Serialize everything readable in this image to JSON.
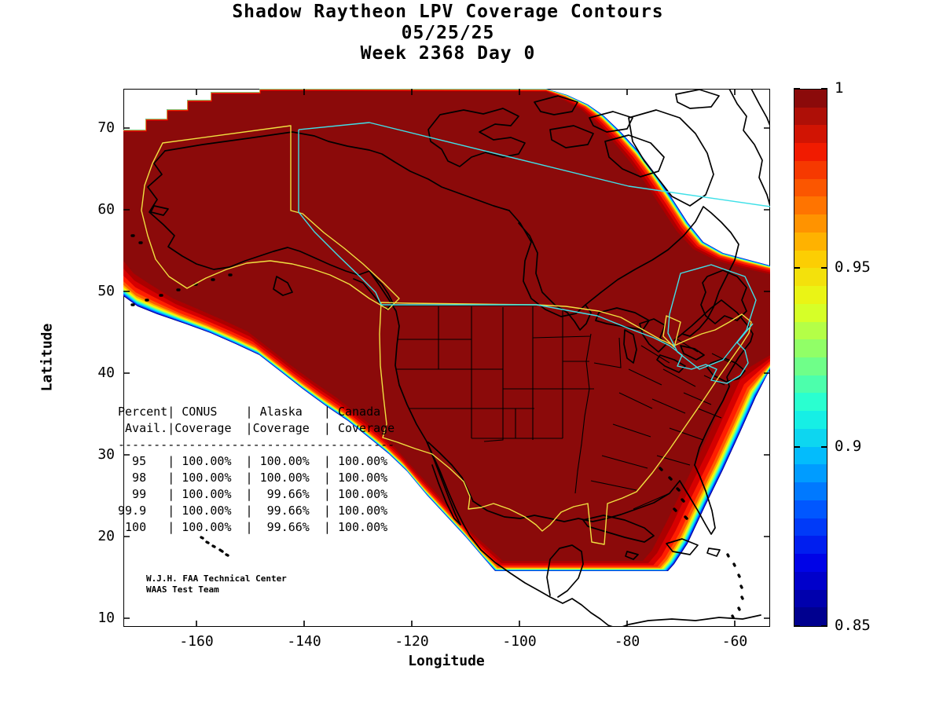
{
  "title": {
    "line1": "Shadow Raytheon LPV Coverage Contours",
    "line2": "05/25/25",
    "line3": "Week 2368 Day 0"
  },
  "axes": {
    "x_label": "Longitude",
    "y_label": "Latitude",
    "x_ticks": [
      "-160",
      "-140",
      "-120",
      "-100",
      "-80",
      "-60"
    ],
    "y_ticks": [
      "70",
      "60",
      "50",
      "40",
      "30",
      "20",
      "10"
    ]
  },
  "colorbar": {
    "tick_labels": [
      "1",
      "0.95",
      "0.9",
      "0.85"
    ],
    "stops_bottom_to_top": [
      "#00008F",
      "#0000E6",
      "#0050FF",
      "#00B4FF",
      "#1CFFDE",
      "#80FF77",
      "#E4FF1B",
      "#FFC800",
      "#FF6E00",
      "#F01800",
      "#8B0A0A"
    ]
  },
  "table": {
    "lines": [
      "Percent| CONUS    | Alaska   | Canada",
      " Avail.|Coverage  |Coverage  | Coverage",
      "---------------------------------------",
      "  95   | 100.00%  | 100.00%  | 100.00%",
      "  98   | 100.00%  | 100.00%  | 100.00%",
      "  99   | 100.00%  |  99.66%  | 100.00%",
      "99.9   | 100.00%  |  99.66%  | 100.00%",
      " 100   | 100.00%  |  99.66%  | 100.00%"
    ]
  },
  "credit": {
    "line1": "W.J.H. FAA Technical Center",
    "line2": "WAAS Test Team"
  },
  "chart_data": {
    "type": "heatmap",
    "subtype": "filled-contour-coverage-map",
    "title": "Shadow Raytheon LPV Coverage Contours",
    "date": "05/25/25",
    "week": 2368,
    "day": 0,
    "xlabel": "Longitude",
    "ylabel": "Latitude",
    "xlim": [
      -175,
      -53
    ],
    "ylim": [
      9.5,
      75
    ],
    "x_ticks": [
      -160,
      -140,
      -120,
      -100,
      -80,
      -60
    ],
    "y_ticks": [
      70,
      60,
      50,
      40,
      30,
      20,
      10
    ],
    "colorbar_range": [
      0.85,
      1
    ],
    "colorbar_ticks": [
      1,
      0.95,
      0.9,
      0.85
    ],
    "legend_position": "right-colorbar",
    "grid": false,
    "coverage_table": {
      "columns": [
        "Percent Avail.",
        "CONUS Coverage",
        "Alaska Coverage",
        "Canada Coverage"
      ],
      "rows": [
        [
          "95",
          "100.00%",
          "100.00%",
          "100.00%"
        ],
        [
          "98",
          "100.00%",
          "100.00%",
          "100.00%"
        ],
        [
          "99",
          "100.00%",
          "99.66%",
          "100.00%"
        ],
        [
          "99.9",
          "100.00%",
          "99.66%",
          "100.00%"
        ],
        [
          "100",
          "100.00%",
          "99.66%",
          "100.00%"
        ]
      ]
    },
    "region": {
      "core_color": "#8B0A0A",
      "band_colors": [
        "#000096",
        "#0033FF",
        "#0090FF",
        "#00E0FF",
        "#4DFFAE",
        "#B4FF4B",
        "#FFF200",
        "#FFAA00",
        "#FF5A00",
        "#FF1E00",
        "#D60000",
        "#AC0000"
      ],
      "band_t": [
        0,
        0.03,
        0.06,
        0.09,
        0.13,
        0.17,
        0.21,
        0.26,
        0.32,
        0.42,
        0.58,
        0.78
      ],
      "outer": [
        [
          157,
          165
        ],
        [
          185,
          165
        ],
        [
          185,
          151
        ],
        [
          212,
          151
        ],
        [
          212,
          139
        ],
        [
          238,
          139
        ],
        [
          238,
          127
        ],
        [
          268,
          127
        ],
        [
          268,
          117
        ],
        [
          330,
          117
        ],
        [
          330,
          113
        ],
        [
          420,
          113
        ],
        [
          695,
          113
        ],
        [
          722,
          121
        ],
        [
          748,
          133
        ],
        [
          768,
          147
        ],
        [
          790,
          168
        ],
        [
          812,
          192
        ],
        [
          833,
          220
        ],
        [
          855,
          252
        ],
        [
          875,
          283
        ],
        [
          895,
          308
        ],
        [
          920,
          322
        ],
        [
          950,
          330
        ],
        [
          980,
          338
        ],
        [
          980,
          470
        ],
        [
          962,
          505
        ],
        [
          942,
          550
        ],
        [
          920,
          598
        ],
        [
          897,
          645
        ],
        [
          875,
          692
        ],
        [
          858,
          718
        ],
        [
          850,
          727
        ],
        [
          630,
          727
        ],
        [
          617,
          712
        ],
        [
          593,
          684
        ],
        [
          568,
          657
        ],
        [
          543,
          630
        ],
        [
          518,
          600
        ],
        [
          495,
          578
        ],
        [
          468,
          556
        ],
        [
          443,
          536
        ],
        [
          415,
          517
        ],
        [
          385,
          495
        ],
        [
          357,
          473
        ],
        [
          330,
          452
        ],
        [
          300,
          438
        ],
        [
          268,
          424
        ],
        [
          235,
          412
        ],
        [
          200,
          400
        ],
        [
          175,
          390
        ],
        [
          157,
          377
        ]
      ],
      "core": [
        [
          157,
          168
        ],
        [
          187,
          168
        ],
        [
          187,
          154
        ],
        [
          214,
          154
        ],
        [
          214,
          142
        ],
        [
          240,
          142
        ],
        [
          240,
          130
        ],
        [
          270,
          130
        ],
        [
          270,
          120
        ],
        [
          332,
          120
        ],
        [
          332,
          116
        ],
        [
          421,
          116
        ],
        [
          695,
          117
        ],
        [
          715,
          126
        ],
        [
          740,
          140
        ],
        [
          758,
          156
        ],
        [
          779,
          179
        ],
        [
          801,
          205
        ],
        [
          821,
          233
        ],
        [
          842,
          265
        ],
        [
          861,
          294
        ],
        [
          882,
          317
        ],
        [
          910,
          331
        ],
        [
          944,
          341
        ],
        [
          980,
          349
        ],
        [
          980,
          452
        ],
        [
          936,
          478
        ],
        [
          916,
          522
        ],
        [
          894,
          570
        ],
        [
          871,
          617
        ],
        [
          849,
          663
        ],
        [
          830,
          700
        ],
        [
          818,
          714
        ],
        [
          640,
          714
        ],
        [
          600,
          678
        ],
        [
          577,
          651
        ],
        [
          552,
          624
        ],
        [
          527,
          597
        ],
        [
          503,
          570
        ],
        [
          480,
          548
        ],
        [
          453,
          526
        ],
        [
          428,
          506
        ],
        [
          400,
          487
        ],
        [
          370,
          465
        ],
        [
          342,
          443
        ],
        [
          315,
          422
        ],
        [
          285,
          408
        ],
        [
          253,
          394
        ],
        [
          220,
          380
        ],
        [
          188,
          360
        ],
        [
          170,
          348
        ],
        [
          157,
          332
        ]
      ]
    },
    "boundary_colors": {
      "conus_alaska": "#F0E040",
      "canada": "#40E0E8",
      "coastline": "#000000"
    }
  }
}
